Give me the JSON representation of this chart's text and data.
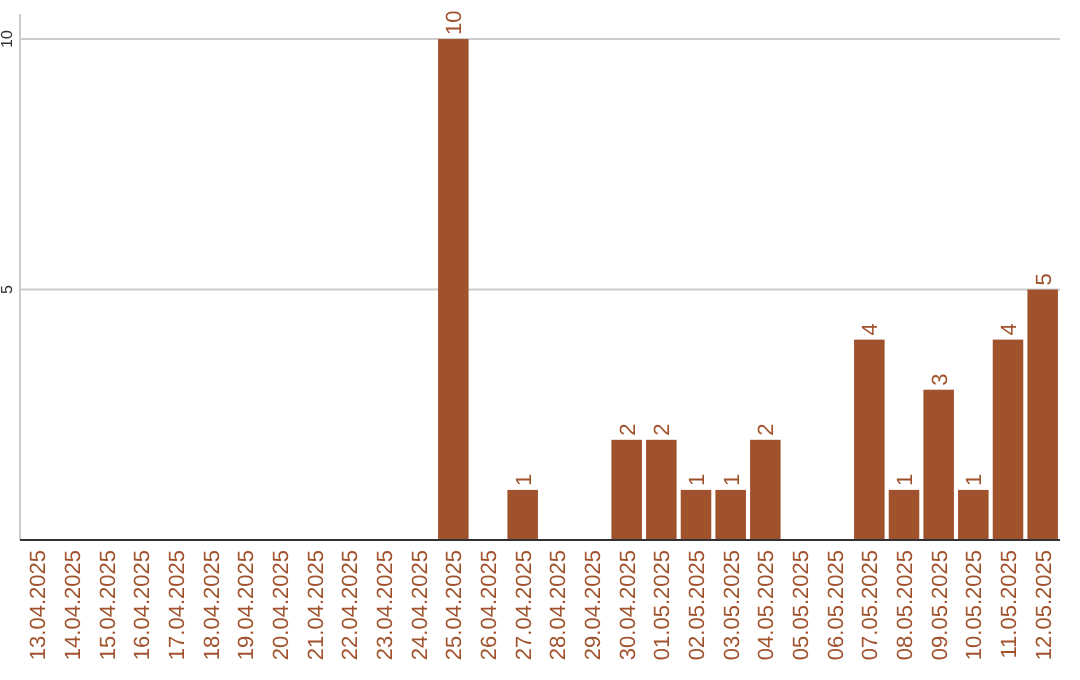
{
  "chart_data": {
    "type": "bar",
    "categories": [
      "13.04.2025",
      "14.04.2025",
      "15.04.2025",
      "16.04.2025",
      "17.04.2025",
      "18.04.2025",
      "19.04.2025",
      "20.04.2025",
      "21.04.2025",
      "22.04.2025",
      "23.04.2025",
      "24.04.2025",
      "25.04.2025",
      "26.04.2025",
      "27.04.2025",
      "28.04.2025",
      "29.04.2025",
      "30.04.2025",
      "01.05.2025",
      "02.05.2025",
      "03.05.2025",
      "04.05.2025",
      "05.05.2025",
      "06.05.2025",
      "07.05.2025",
      "08.05.2025",
      "09.05.2025",
      "10.05.2025",
      "11.05.2025",
      "12.05.2025"
    ],
    "values": [
      0,
      0,
      0,
      0,
      0,
      0,
      0,
      0,
      0,
      0,
      0,
      0,
      10,
      0,
      1,
      0,
      0,
      2,
      2,
      1,
      1,
      2,
      0,
      0,
      4,
      1,
      3,
      1,
      4,
      5
    ],
    "value_labels": [
      null,
      null,
      null,
      null,
      null,
      null,
      null,
      null,
      null,
      null,
      null,
      null,
      "10",
      null,
      "1",
      null,
      null,
      "2",
      "2",
      "1",
      "1",
      "2",
      null,
      null,
      "4",
      "1",
      "3",
      "1",
      "4",
      "5"
    ],
    "color": "#a0522d",
    "ylim": [
      0,
      10.5
    ],
    "yticks": [
      5,
      10
    ],
    "grid": "y"
  }
}
